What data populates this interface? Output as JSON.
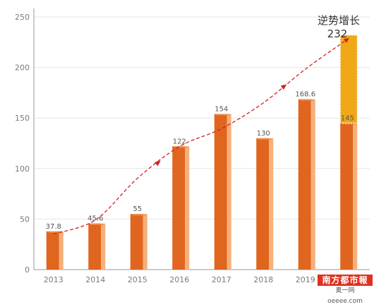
{
  "chart_data": {
    "type": "bar",
    "categories": [
      "2013",
      "2014",
      "2015",
      "2016",
      "2017",
      "2018",
      "2019",
      ""
    ],
    "values": [
      37.8,
      45.6,
      55,
      122,
      154,
      130,
      168.6,
      145
    ],
    "value_labels": [
      "37.8",
      "45.6",
      "55",
      "122",
      "154",
      "130",
      "168.6",
      "145"
    ],
    "projection": {
      "category_index": 7,
      "base": 145,
      "target": 232,
      "label": "232",
      "color": "#f0a818"
    },
    "callout_title": "逆势增长",
    "yticks": [
      "0",
      "50",
      "100",
      "150",
      "200",
      "250"
    ],
    "ylim": [
      0,
      250
    ],
    "grid": true,
    "title": "",
    "xlabel": "",
    "ylabel": "",
    "trend_line": {
      "style": "dashed-arrow",
      "color": "#cc2222"
    },
    "colors": {
      "bar": "#e0651e",
      "bar_side": "#f6b07a",
      "projection": "#f0a818",
      "trend": "#cc2222"
    }
  },
  "watermark": {
    "top": "南方都市報",
    "bottom": "奥一网 oeeee.com"
  }
}
